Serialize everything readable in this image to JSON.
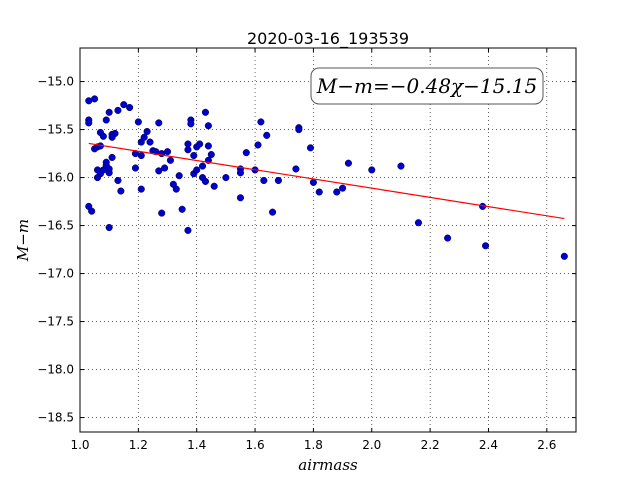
{
  "chart_data": {
    "type": "scatter",
    "title": "2020-03-16_193539",
    "xlabel": "airmass",
    "ylabel": "M−m",
    "xlim": [
      1.0,
      2.7
    ],
    "ylim": [
      -18.65,
      -14.65
    ],
    "xticks": [
      "1.0",
      "1.2",
      "1.4",
      "1.6",
      "1.8",
      "2.0",
      "2.2",
      "2.4",
      "2.6"
    ],
    "yticks": [
      "−15.0",
      "−15.5",
      "−16.0",
      "−16.5",
      "−17.0",
      "−17.5",
      "−18.0",
      "−18.5"
    ],
    "xtick_values": [
      1.0,
      1.2,
      1.4,
      1.6,
      1.8,
      2.0,
      2.2,
      2.4,
      2.6
    ],
    "ytick_values": [
      -15.0,
      -15.5,
      -16.0,
      -16.5,
      -17.0,
      -17.5,
      -18.0,
      -18.5
    ],
    "grid": true,
    "annotation": "M−m=−0.48χ−15.15",
    "point_color": "#0000cc",
    "fit_color": "#ff0000",
    "fit": {
      "slope": -0.48,
      "intercept": -15.15,
      "x_range": [
        1.03,
        2.66
      ]
    },
    "points": [
      [
        1.03,
        -15.2
      ],
      [
        1.05,
        -15.18
      ],
      [
        1.03,
        -15.4
      ],
      [
        1.03,
        -15.43
      ],
      [
        1.05,
        -15.7
      ],
      [
        1.06,
        -15.68
      ],
      [
        1.07,
        -15.53
      ],
      [
        1.07,
        -15.67
      ],
      [
        1.08,
        -15.57
      ],
      [
        1.06,
        -15.92
      ],
      [
        1.07,
        -15.96
      ],
      [
        1.08,
        -15.92
      ],
      [
        1.09,
        -15.87
      ],
      [
        1.1,
        -15.91
      ],
      [
        1.09,
        -15.84
      ],
      [
        1.1,
        -15.95
      ],
      [
        1.03,
        -16.3
      ],
      [
        1.04,
        -16.35
      ],
      [
        1.06,
        -16.0
      ],
      [
        1.09,
        -15.4
      ],
      [
        1.1,
        -15.32
      ],
      [
        1.11,
        -15.55
      ],
      [
        1.11,
        -15.58
      ],
      [
        1.12,
        -15.54
      ],
      [
        1.13,
        -15.3
      ],
      [
        1.11,
        -15.79
      ],
      [
        1.13,
        -16.03
      ],
      [
        1.14,
        -16.14
      ],
      [
        1.1,
        -16.52
      ],
      [
        1.15,
        -15.24
      ],
      [
        1.17,
        -15.27
      ],
      [
        1.19,
        -15.75
      ],
      [
        1.2,
        -15.42
      ],
      [
        1.21,
        -15.63
      ],
      [
        1.22,
        -15.58
      ],
      [
        1.23,
        -15.52
      ],
      [
        1.21,
        -15.77
      ],
      [
        1.19,
        -15.9
      ],
      [
        1.21,
        -16.12
      ],
      [
        1.24,
        -15.63
      ],
      [
        1.25,
        -15.72
      ],
      [
        1.26,
        -15.73
      ],
      [
        1.27,
        -15.43
      ],
      [
        1.28,
        -15.75
      ],
      [
        1.27,
        -15.93
      ],
      [
        1.29,
        -15.9
      ],
      [
        1.3,
        -15.73
      ],
      [
        1.31,
        -15.82
      ],
      [
        1.32,
        -16.07
      ],
      [
        1.33,
        -16.12
      ],
      [
        1.34,
        -15.98
      ],
      [
        1.35,
        -16.33
      ],
      [
        1.28,
        -16.37
      ],
      [
        1.37,
        -15.71
      ],
      [
        1.37,
        -15.65
      ],
      [
        1.38,
        -15.4
      ],
      [
        1.38,
        -15.44
      ],
      [
        1.39,
        -15.77
      ],
      [
        1.39,
        -15.96
      ],
      [
        1.4,
        -15.92
      ],
      [
        1.4,
        -15.68
      ],
      [
        1.41,
        -15.65
      ],
      [
        1.42,
        -15.88
      ],
      [
        1.42,
        -16.0
      ],
      [
        1.43,
        -15.32
      ],
      [
        1.44,
        -15.46
      ],
      [
        1.44,
        -15.67
      ],
      [
        1.45,
        -15.76
      ],
      [
        1.43,
        -16.04
      ],
      [
        1.46,
        -16.09
      ],
      [
        1.37,
        -16.55
      ],
      [
        1.44,
        -15.82
      ],
      [
        1.5,
        -16.0
      ],
      [
        1.55,
        -16.21
      ],
      [
        1.55,
        -15.91
      ],
      [
        1.55,
        -15.95
      ],
      [
        1.57,
        -15.74
      ],
      [
        1.6,
        -15.92
      ],
      [
        1.61,
        -15.66
      ],
      [
        1.62,
        -15.42
      ],
      [
        1.63,
        -16.03
      ],
      [
        1.64,
        -15.56
      ],
      [
        1.66,
        -16.36
      ],
      [
        1.68,
        -16.03
      ],
      [
        1.74,
        -15.91
      ],
      [
        1.75,
        -15.48
      ],
      [
        1.75,
        -15.5
      ],
      [
        1.79,
        -15.69
      ],
      [
        1.8,
        -16.05
      ],
      [
        1.82,
        -16.15
      ],
      [
        1.88,
        -16.15
      ],
      [
        1.9,
        -16.11
      ],
      [
        1.92,
        -15.85
      ],
      [
        2.0,
        -15.92
      ],
      [
        2.1,
        -15.88
      ],
      [
        2.16,
        -16.47
      ],
      [
        2.26,
        -16.63
      ],
      [
        2.38,
        -16.3
      ],
      [
        2.39,
        -16.71
      ],
      [
        2.66,
        -16.82
      ]
    ]
  }
}
